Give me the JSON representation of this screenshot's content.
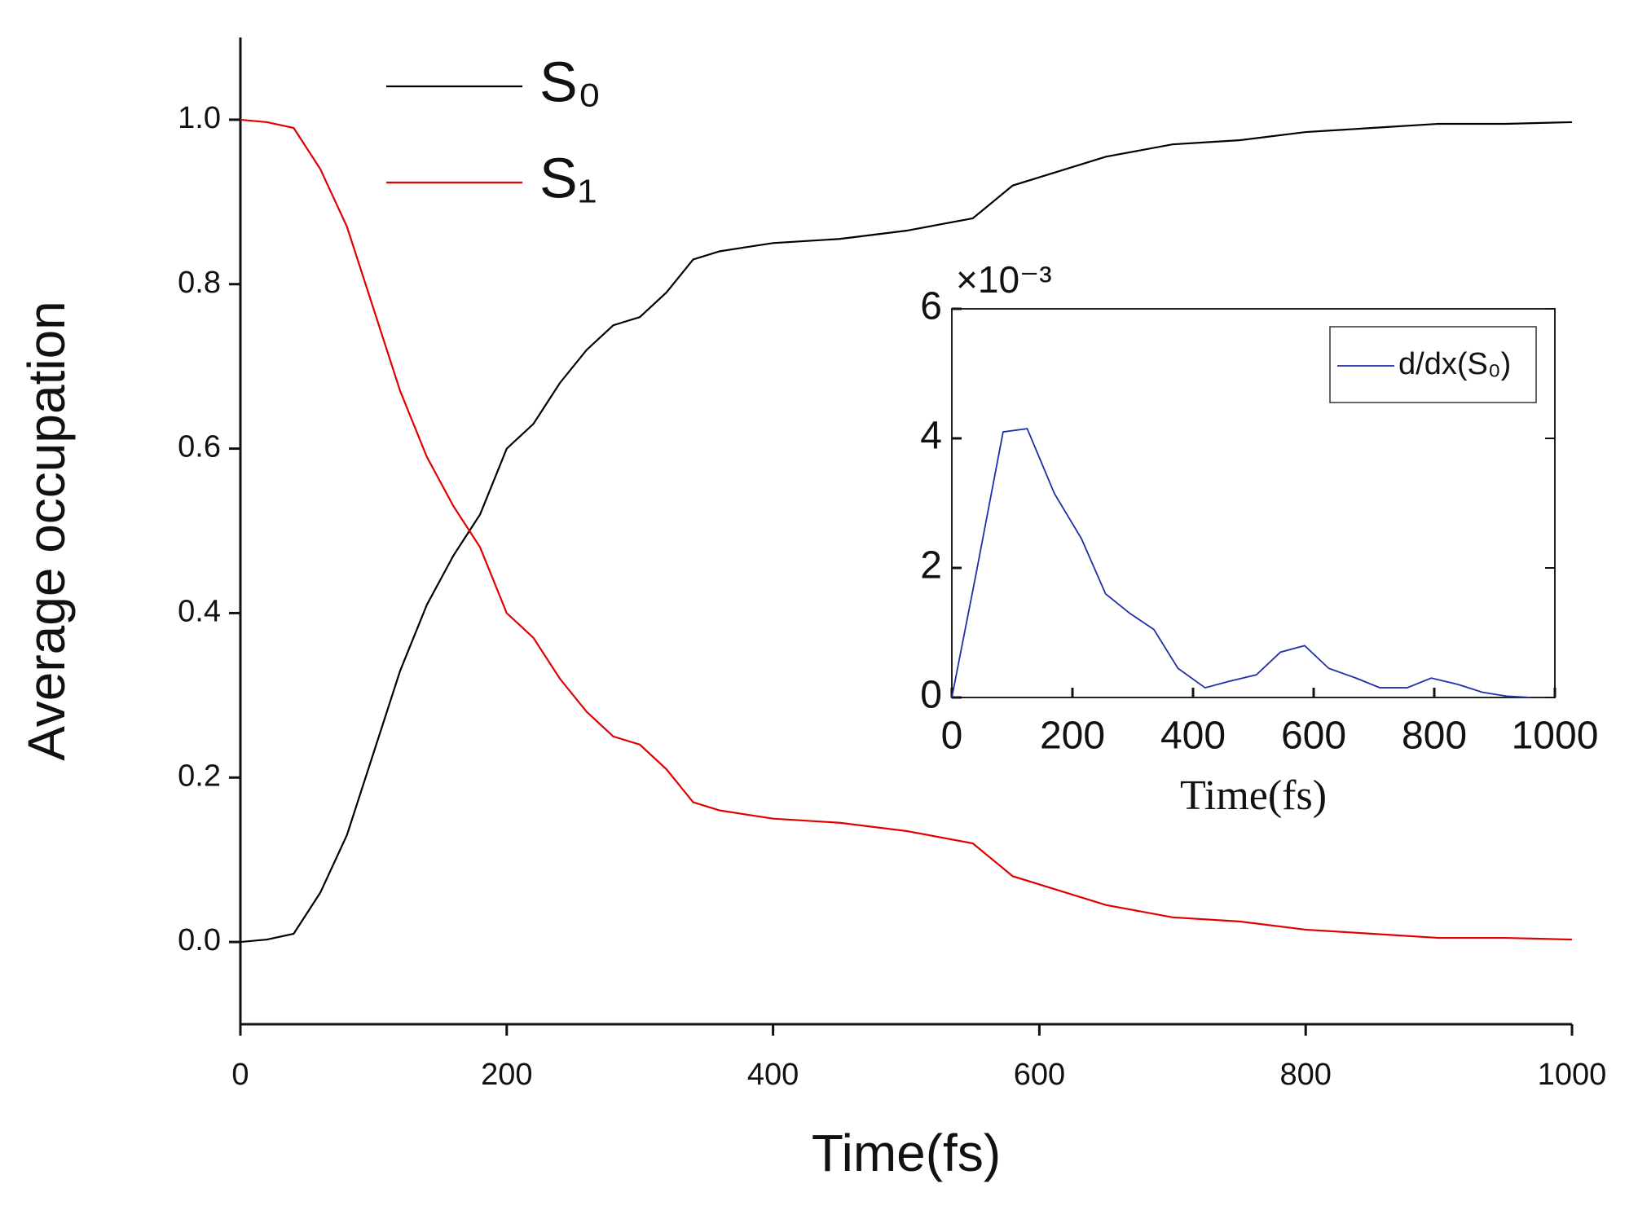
{
  "chart_data": [
    {
      "type": "line",
      "xlabel": "Time(fs)",
      "ylabel": "Average occupation",
      "x": [
        0,
        20,
        40,
        60,
        80,
        100,
        120,
        140,
        160,
        180,
        200,
        220,
        240,
        260,
        280,
        300,
        320,
        340,
        360,
        380,
        400,
        450,
        500,
        550,
        580,
        600,
        650,
        700,
        750,
        800,
        850,
        900,
        950,
        1000
      ],
      "series": [
        {
          "name": "S₀",
          "color": "#000000",
          "values": [
            0,
            0.003,
            0.01,
            0.06,
            0.13,
            0.23,
            0.33,
            0.41,
            0.47,
            0.52,
            0.6,
            0.63,
            0.68,
            0.72,
            0.75,
            0.76,
            0.79,
            0.83,
            0.84,
            0.845,
            0.85,
            0.855,
            0.865,
            0.88,
            0.92,
            0.93,
            0.955,
            0.97,
            0.975,
            0.985,
            0.99,
            0.995,
            0.995,
            0.997
          ]
        },
        {
          "name": "S₁",
          "color": "#e00000",
          "values": [
            1,
            0.997,
            0.99,
            0.94,
            0.87,
            0.77,
            0.67,
            0.59,
            0.53,
            0.48,
            0.4,
            0.37,
            0.32,
            0.28,
            0.25,
            0.24,
            0.21,
            0.17,
            0.16,
            0.155,
            0.15,
            0.145,
            0.135,
            0.12,
            0.08,
            0.07,
            0.045,
            0.03,
            0.025,
            0.015,
            0.01,
            0.005,
            0.005,
            0.003
          ]
        }
      ],
      "xlim": [
        0,
        1000
      ],
      "xticks": [
        0,
        200,
        400,
        600,
        800,
        1000
      ],
      "ylim": [
        -0.1,
        1.1
      ],
      "yticks": [
        {
          "value": 0,
          "label": "0.0"
        },
        0.2,
        0.4,
        0.6,
        0.8,
        {
          "value": 1,
          "label": "1.0"
        }
      ],
      "legend": "top-left"
    },
    {
      "type": "line",
      "xlabel": "Time(fs)",
      "annotation": "×10⁻³",
      "x": [
        0,
        40,
        85,
        125,
        170,
        215,
        255,
        295,
        335,
        375,
        420,
        460,
        505,
        545,
        585,
        625,
        670,
        710,
        755,
        795,
        840,
        880,
        920,
        960
      ],
      "series": [
        {
          "name": "d/dx(S₀)",
          "color": "#1f2fa8",
          "values": [
            0,
            1.9,
            4.1,
            4.15,
            3.15,
            2.45,
            1.6,
            1.3,
            1.05,
            0.45,
            0.15,
            0.25,
            0.35,
            0.7,
            0.8,
            0.45,
            0.3,
            0.15,
            0.15,
            0.3,
            0.2,
            0.08,
            0.02,
            0
          ]
        }
      ],
      "xlim": [
        0,
        1000
      ],
      "xticks": [
        0,
        200,
        400,
        600,
        800,
        1000
      ],
      "ylim": [
        0,
        6
      ],
      "yticks": [
        0,
        2,
        4,
        6
      ],
      "legend": "top-right"
    }
  ]
}
